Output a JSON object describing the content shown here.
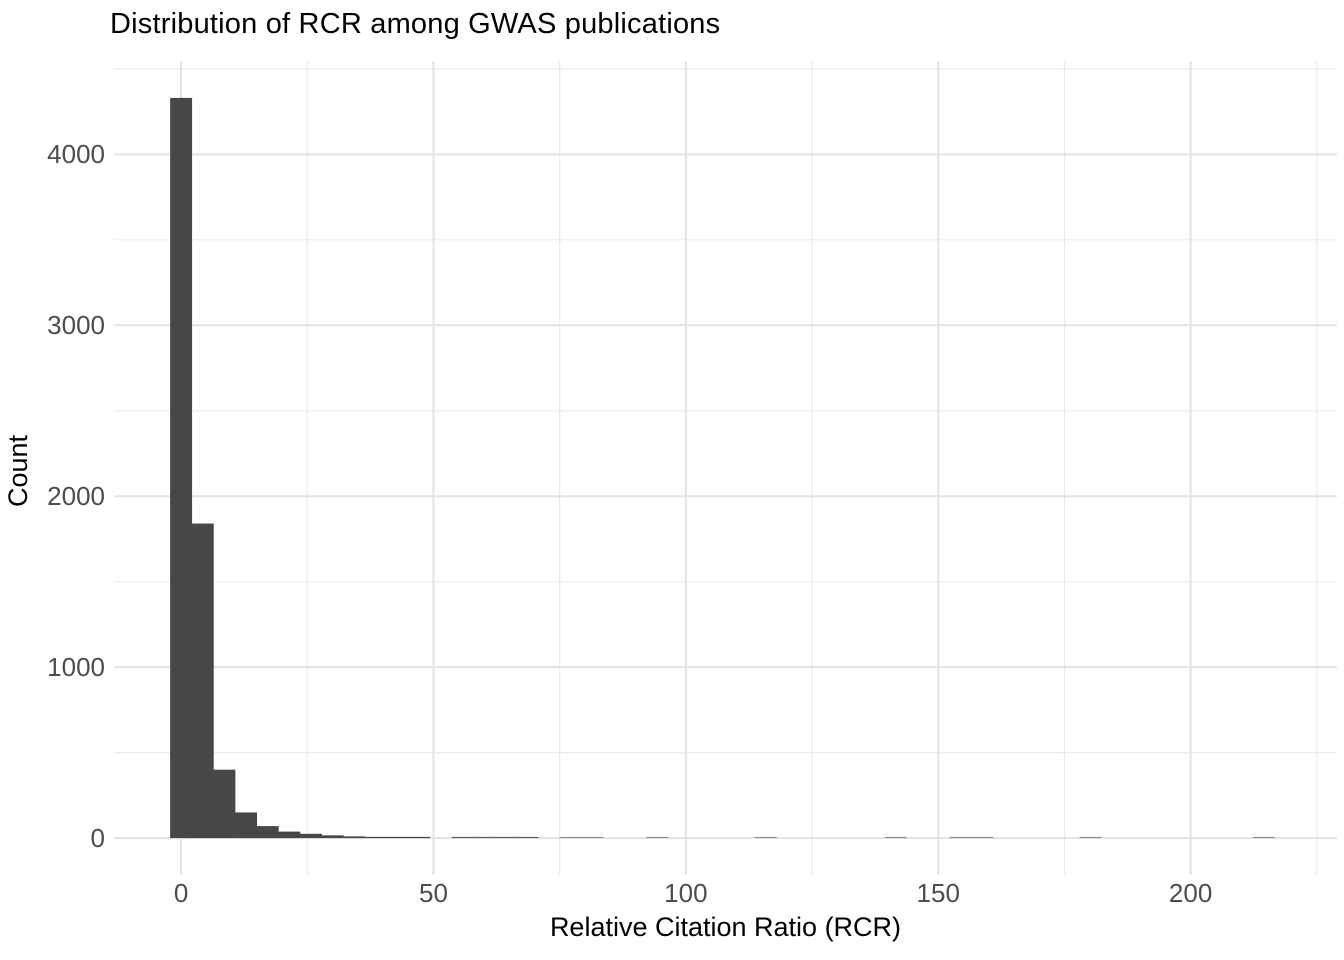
{
  "chart_data": {
    "type": "bar",
    "subtype": "histogram",
    "title": "Distribution of RCR among GWAS publications",
    "xlabel": "Relative Citation Ratio (RCR)",
    "ylabel": "Count",
    "legend_position": "none",
    "grid": "on",
    "background": "#ffffff",
    "bar_color": "#474747",
    "grid_major_color": "#e3e3e3",
    "grid_minor_color": "#ebebeb",
    "tick_label_color": "#4d4d4d",
    "axis_title_color": "#000000",
    "x_ticks": [
      0,
      50,
      100,
      150,
      200
    ],
    "x_minor_gridlines": [
      25,
      75,
      125,
      175,
      225
    ],
    "y_ticks": [
      0,
      1000,
      2000,
      3000,
      4000
    ],
    "y_minor_gridlines": [
      500,
      1500,
      2500,
      3500,
      4500
    ],
    "xlim": [
      -13.3,
      229.0
    ],
    "ylim": [
      -216,
      4546
    ],
    "bin_start": -2.18,
    "bin_width": 4.29,
    "counts": [
      4330,
      1840,
      400,
      150,
      70,
      38,
      25,
      16,
      10,
      7,
      5,
      3,
      0,
      2,
      2,
      2,
      2,
      0,
      1,
      1,
      0,
      0,
      1,
      0,
      0,
      0,
      0,
      1,
      0,
      0,
      0,
      0,
      0,
      1,
      0,
      0,
      1,
      1,
      0,
      0,
      0,
      0,
      1,
      0,
      0,
      0,
      0,
      0,
      0,
      0,
      1
    ],
    "max_value": 4330,
    "peak_bin_center": 0
  }
}
